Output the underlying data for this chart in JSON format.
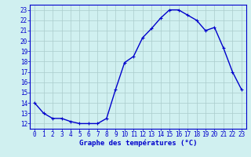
{
  "hours": [
    0,
    1,
    2,
    3,
    4,
    5,
    6,
    7,
    8,
    9,
    10,
    11,
    12,
    13,
    14,
    15,
    16,
    17,
    18,
    19,
    20,
    21,
    22,
    23
  ],
  "temps": [
    14.0,
    13.0,
    12.5,
    12.5,
    12.2,
    12.0,
    12.0,
    12.0,
    12.5,
    15.3,
    17.9,
    18.5,
    20.3,
    21.2,
    22.2,
    23.0,
    23.0,
    22.5,
    22.0,
    21.0,
    21.3,
    19.3,
    17.0,
    15.3
  ],
  "line_color": "#0000cc",
  "marker": "+",
  "bg_color": "#d0f0f0",
  "grid_color": "#aacccc",
  "xlabel": "Graphe des températures (°C)",
  "xlabel_color": "#0000cc",
  "ylim_min": 11.5,
  "ylim_max": 23.5,
  "yticks": [
    12,
    13,
    14,
    15,
    16,
    17,
    18,
    19,
    20,
    21,
    22,
    23
  ],
  "xticks": [
    0,
    1,
    2,
    3,
    4,
    5,
    6,
    7,
    8,
    9,
    10,
    11,
    12,
    13,
    14,
    15,
    16,
    17,
    18,
    19,
    20,
    21,
    22,
    23
  ],
  "tick_fontsize": 5.5,
  "xlabel_fontsize": 6.5,
  "linewidth": 1.0,
  "markersize": 3.5
}
